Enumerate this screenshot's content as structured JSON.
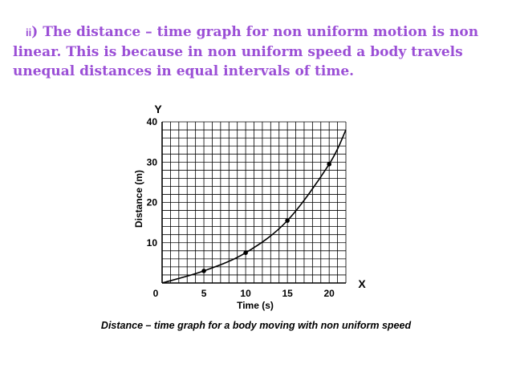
{
  "heading": {
    "roman": "ii",
    "line1_rest": ") The distance – time graph for non uniform motion is non",
    "line2": "linear. This is  because in non uniform speed a body travels",
    "line3": "unequal distances in equal intervals of time."
  },
  "caption": "Distance – time graph for a body moving with non uniform speed",
  "colors": {
    "heading": "#9b4fd6",
    "grid": "#000000",
    "curve": "#000000"
  },
  "chart_data": {
    "type": "line",
    "title": "",
    "xlabel": "Time (s)",
    "ylabel": "Distance (m)",
    "x_axis_letter": "X",
    "y_axis_letter": "Y",
    "origin_label": "0",
    "xlim": [
      0,
      22
    ],
    "ylim": [
      0,
      40
    ],
    "x_ticks": [
      5,
      10,
      15,
      20
    ],
    "y_ticks": [
      10,
      20,
      30,
      40
    ],
    "grid": true,
    "series": [
      {
        "x": [
          0,
          5,
          10,
          15,
          20,
          22
        ],
        "y": [
          0,
          3,
          7.5,
          15.5,
          29.5,
          38
        ]
      }
    ],
    "marked_points": [
      {
        "x": 5,
        "y": 3
      },
      {
        "x": 10,
        "y": 7.5
      },
      {
        "x": 15,
        "y": 15.5
      },
      {
        "x": 20,
        "y": 29.5
      }
    ]
  }
}
